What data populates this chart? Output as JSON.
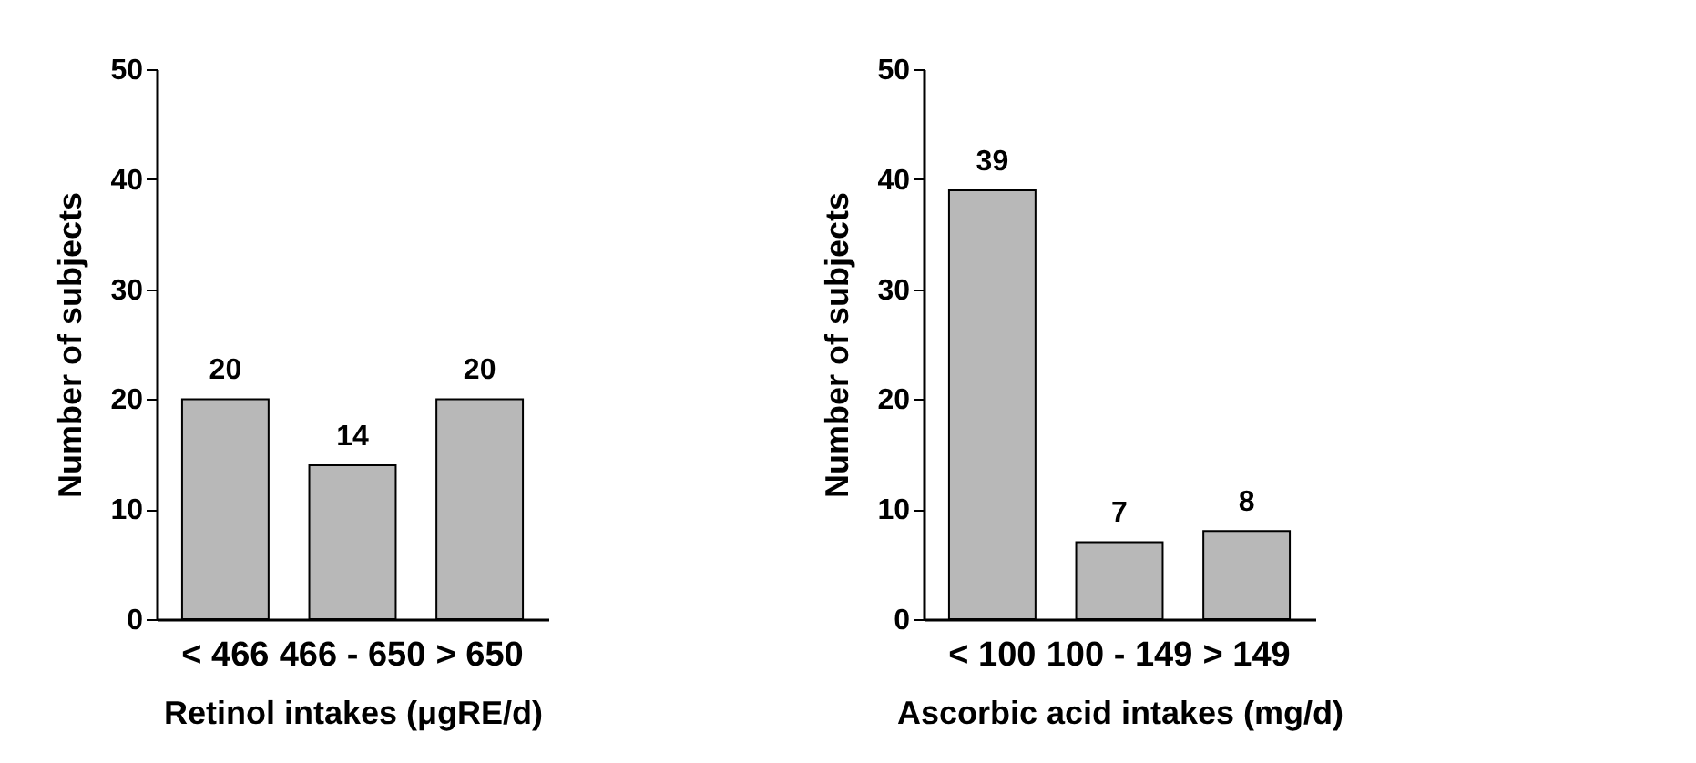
{
  "chart_data": [
    {
      "type": "bar",
      "xlabel": "Retinol intakes (μgRE/d)",
      "ylabel": "Number of  subjects",
      "categories": [
        "< 466",
        "466 - 650",
        "> 650"
      ],
      "values": [
        20,
        14,
        20
      ],
      "color": "#b8b8b8",
      "ylim": [
        0,
        50
      ],
      "yticks": [
        0,
        10,
        20,
        30,
        40,
        50
      ],
      "data_labels": true,
      "grid": false
    },
    {
      "type": "bar",
      "xlabel": "Ascorbic acid intakes (mg/d)",
      "ylabel": "Number of  subjects",
      "categories": [
        "< 100",
        "100 - 149",
        "> 149"
      ],
      "values": [
        39,
        7,
        8
      ],
      "color": "#b8b8b8",
      "ylim": [
        0,
        50
      ],
      "yticks": [
        0,
        10,
        20,
        30,
        40,
        50
      ],
      "data_labels": true,
      "grid": false
    }
  ]
}
